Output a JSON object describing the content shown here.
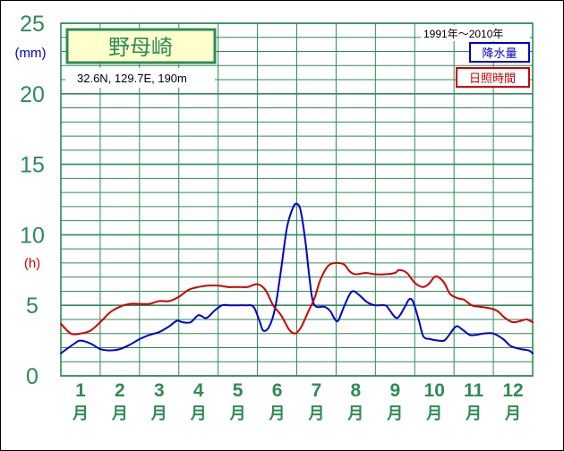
{
  "chart_data": {
    "type": "line",
    "title": "野母崎",
    "station_info": "32.6N,  129.7E,  190m",
    "period": "1991年〜2010年",
    "left_unit_precip": "(mm)",
    "left_unit_sunshine": "(h)",
    "y_ticks": [
      "0",
      "5",
      "10",
      "15",
      "20",
      "25"
    ],
    "ylim": [
      0,
      25
    ],
    "x_range": [
      0.5,
      12.5
    ],
    "months": [
      "1",
      "2",
      "3",
      "4",
      "5",
      "6",
      "7",
      "8",
      "9",
      "10",
      "11",
      "12"
    ],
    "month_suffix": "月",
    "series": [
      {
        "name": "降水量",
        "color": "#0000cc",
        "points": [
          [
            0.5,
            1.6
          ],
          [
            0.85,
            2.3
          ],
          [
            1.0,
            2.5
          ],
          [
            1.25,
            2.3
          ],
          [
            1.5,
            1.9
          ],
          [
            1.75,
            1.8
          ],
          [
            2.0,
            1.9
          ],
          [
            2.25,
            2.2
          ],
          [
            2.5,
            2.6
          ],
          [
            2.75,
            2.9
          ],
          [
            3.0,
            3.1
          ],
          [
            3.25,
            3.5
          ],
          [
            3.45,
            3.9
          ],
          [
            3.6,
            3.8
          ],
          [
            3.8,
            3.8
          ],
          [
            4.0,
            4.3
          ],
          [
            4.2,
            4.1
          ],
          [
            4.4,
            4.6
          ],
          [
            4.6,
            5.0
          ],
          [
            4.8,
            5.0
          ],
          [
            5.0,
            5.0
          ],
          [
            5.2,
            5.0
          ],
          [
            5.4,
            4.9
          ],
          [
            5.55,
            3.9
          ],
          [
            5.65,
            3.2
          ],
          [
            5.8,
            3.5
          ],
          [
            5.95,
            4.8
          ],
          [
            6.1,
            7.5
          ],
          [
            6.25,
            10.5
          ],
          [
            6.4,
            11.9
          ],
          [
            6.5,
            12.2
          ],
          [
            6.6,
            11.7
          ],
          [
            6.72,
            9.5
          ],
          [
            6.82,
            7.0
          ],
          [
            6.9,
            5.4
          ],
          [
            7.0,
            4.9
          ],
          [
            7.2,
            4.9
          ],
          [
            7.35,
            4.6
          ],
          [
            7.45,
            4.1
          ],
          [
            7.55,
            3.9
          ],
          [
            7.7,
            4.9
          ],
          [
            7.85,
            5.8
          ],
          [
            7.95,
            6.0
          ],
          [
            8.1,
            5.7
          ],
          [
            8.3,
            5.2
          ],
          [
            8.5,
            5.0
          ],
          [
            8.75,
            5.0
          ],
          [
            8.85,
            4.7
          ],
          [
            9.05,
            4.1
          ],
          [
            9.25,
            4.9
          ],
          [
            9.35,
            5.4
          ],
          [
            9.45,
            5.3
          ],
          [
            9.6,
            4.0
          ],
          [
            9.72,
            2.8
          ],
          [
            9.9,
            2.6
          ],
          [
            10.1,
            2.5
          ],
          [
            10.25,
            2.5
          ],
          [
            10.35,
            2.8
          ],
          [
            10.55,
            3.5
          ],
          [
            10.7,
            3.3
          ],
          [
            10.9,
            2.9
          ],
          [
            11.05,
            2.9
          ],
          [
            11.25,
            3.0
          ],
          [
            11.5,
            3.0
          ],
          [
            11.75,
            2.6
          ],
          [
            11.95,
            2.1
          ],
          [
            12.2,
            1.9
          ],
          [
            12.4,
            1.8
          ],
          [
            12.5,
            1.6
          ]
        ]
      },
      {
        "name": "日照時間",
        "color": "#cc0000",
        "points": [
          [
            0.5,
            3.7
          ],
          [
            0.75,
            3.0
          ],
          [
            1.0,
            3.0
          ],
          [
            1.25,
            3.2
          ],
          [
            1.5,
            3.8
          ],
          [
            1.75,
            4.5
          ],
          [
            2.0,
            4.9
          ],
          [
            2.25,
            5.1
          ],
          [
            2.5,
            5.1
          ],
          [
            2.75,
            5.1
          ],
          [
            3.0,
            5.3
          ],
          [
            3.25,
            5.3
          ],
          [
            3.5,
            5.6
          ],
          [
            3.75,
            6.1
          ],
          [
            4.0,
            6.3
          ],
          [
            4.25,
            6.4
          ],
          [
            4.5,
            6.4
          ],
          [
            4.75,
            6.3
          ],
          [
            5.0,
            6.3
          ],
          [
            5.25,
            6.3
          ],
          [
            5.5,
            6.5
          ],
          [
            5.7,
            6.1
          ],
          [
            5.9,
            5.0
          ],
          [
            6.1,
            4.3
          ],
          [
            6.3,
            3.3
          ],
          [
            6.45,
            3.0
          ],
          [
            6.6,
            3.4
          ],
          [
            6.8,
            4.6
          ],
          [
            6.95,
            5.5
          ],
          [
            7.1,
            6.8
          ],
          [
            7.3,
            7.8
          ],
          [
            7.5,
            8.0
          ],
          [
            7.7,
            7.9
          ],
          [
            7.85,
            7.4
          ],
          [
            8.0,
            7.2
          ],
          [
            8.25,
            7.3
          ],
          [
            8.5,
            7.2
          ],
          [
            8.75,
            7.2
          ],
          [
            9.0,
            7.3
          ],
          [
            9.1,
            7.5
          ],
          [
            9.3,
            7.3
          ],
          [
            9.5,
            6.6
          ],
          [
            9.7,
            6.3
          ],
          [
            9.85,
            6.5
          ],
          [
            10.0,
            7.0
          ],
          [
            10.1,
            7.0
          ],
          [
            10.25,
            6.6
          ],
          [
            10.4,
            5.8
          ],
          [
            10.6,
            5.5
          ],
          [
            10.75,
            5.4
          ],
          [
            10.95,
            5.0
          ],
          [
            11.15,
            4.9
          ],
          [
            11.4,
            4.8
          ],
          [
            11.6,
            4.6
          ],
          [
            11.8,
            4.1
          ],
          [
            12.0,
            3.8
          ],
          [
            12.2,
            3.9
          ],
          [
            12.35,
            4.0
          ],
          [
            12.5,
            3.8
          ]
        ]
      }
    ],
    "grid": true,
    "legend_position": "top-right"
  }
}
